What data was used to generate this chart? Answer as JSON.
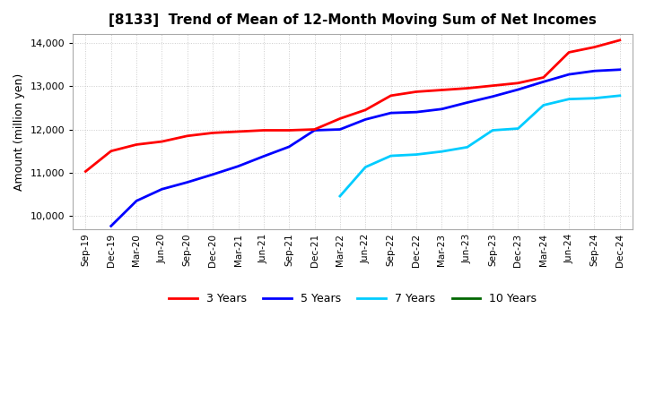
{
  "title": "[8133]  Trend of Mean of 12-Month Moving Sum of Net Incomes",
  "ylabel": "Amount (million yen)",
  "ylim": [
    9700,
    14200
  ],
  "yticks": [
    10000,
    11000,
    12000,
    13000,
    14000
  ],
  "background_color": "#ffffff",
  "grid_color": "#cccccc",
  "x_labels": [
    "Sep-19",
    "Dec-19",
    "Mar-20",
    "Jun-20",
    "Sep-20",
    "Dec-20",
    "Mar-21",
    "Jun-21",
    "Sep-21",
    "Dec-21",
    "Mar-22",
    "Jun-22",
    "Sep-22",
    "Dec-22",
    "Mar-23",
    "Jun-23",
    "Sep-23",
    "Dec-23",
    "Mar-24",
    "Jun-24",
    "Sep-24",
    "Dec-24"
  ],
  "series": {
    "3 Years": {
      "color": "#ff0000",
      "data_x": [
        0,
        1,
        2,
        3,
        4,
        5,
        6,
        7,
        8,
        9,
        10,
        11,
        12,
        13,
        14,
        15,
        16,
        17,
        18,
        19,
        20,
        21
      ],
      "data_y": [
        11030,
        11500,
        11650,
        11720,
        11850,
        11920,
        11950,
        11980,
        11980,
        12000,
        12250,
        12450,
        12780,
        12870,
        12910,
        12950,
        13010,
        13070,
        13200,
        13780,
        13900,
        14060
      ]
    },
    "5 Years": {
      "color": "#0000ff",
      "data_x": [
        1,
        2,
        3,
        4,
        5,
        6,
        7,
        8,
        9,
        10,
        11,
        12,
        13,
        14,
        15,
        16,
        17,
        18,
        19,
        20,
        21
      ],
      "data_y": [
        9770,
        10350,
        10620,
        10780,
        10960,
        11150,
        11380,
        11600,
        11980,
        12000,
        12230,
        12380,
        12400,
        12470,
        12620,
        12760,
        12920,
        13100,
        13270,
        13350,
        13380
      ]
    },
    "7 Years": {
      "color": "#00ccff",
      "data_x": [
        10,
        11,
        12,
        13,
        14,
        15,
        16,
        17,
        18,
        19,
        20,
        21
      ],
      "data_y": [
        10460,
        11130,
        11390,
        11420,
        11490,
        11590,
        11980,
        12020,
        12560,
        12700,
        12720,
        12780
      ]
    },
    "10 Years": {
      "color": "#006600",
      "data_x": [],
      "data_y": []
    }
  },
  "series_order": [
    "10 Years",
    "7 Years",
    "5 Years",
    "3 Years"
  ],
  "legend_order": [
    "3 Years",
    "5 Years",
    "7 Years",
    "10 Years"
  ]
}
